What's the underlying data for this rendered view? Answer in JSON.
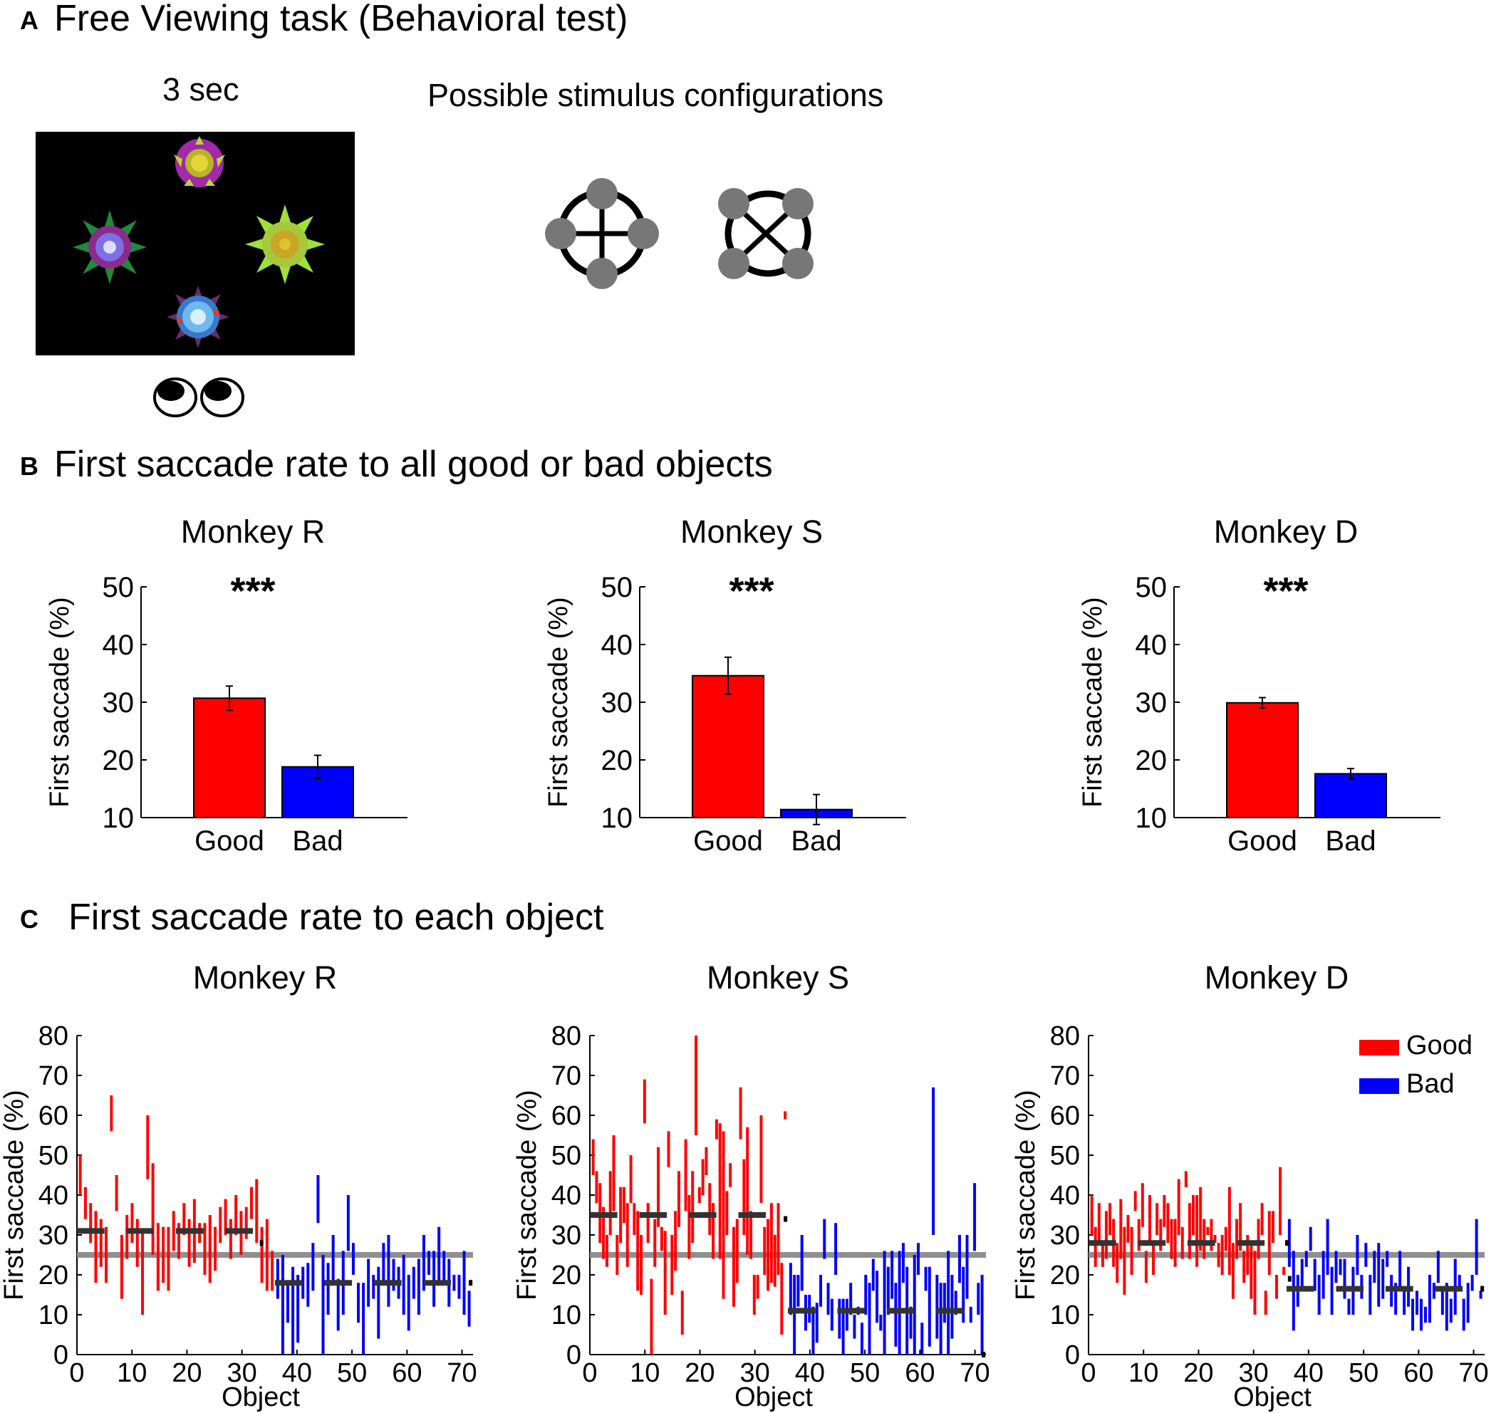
{
  "panelA": {
    "letter": "A",
    "title": "Free Viewing task (Behavioral test)",
    "duration": "3 sec",
    "config_title": "Possible stimulus configurations"
  },
  "panelB": {
    "letter": "B",
    "title": "First saccade rate to all good or bad objects"
  },
  "panelC": {
    "letter": "C",
    "title": "First saccade rate to each object"
  },
  "colors": {
    "good": "#ff0000",
    "bad": "#0000ff",
    "mean": "#333333",
    "chance": "#8f8f8f"
  },
  "chart_data": [
    {
      "type": "bar",
      "title": "Monkey R",
      "ylabel": "First saccade (%)",
      "categories": [
        "Good",
        "Bad"
      ],
      "values": [
        30.7,
        18.8
      ],
      "errors": [
        2.1,
        2.0
      ],
      "ylim": [
        10,
        50
      ],
      "yticks": [
        "10",
        "20",
        "30",
        "40",
        "50"
      ],
      "significance": "***"
    },
    {
      "type": "bar",
      "title": "Monkey S",
      "ylabel": "First saccade (%)",
      "categories": [
        "Good",
        "Bad"
      ],
      "values": [
        34.6,
        11.4
      ],
      "errors": [
        3.2,
        2.6
      ],
      "ylim": [
        10,
        50
      ],
      "yticks": [
        "10",
        "20",
        "30",
        "40",
        "50"
      ],
      "significance": "***"
    },
    {
      "type": "bar",
      "title": "Monkey D",
      "ylabel": "First saccade (%)",
      "categories": [
        "Good",
        "Bad"
      ],
      "values": [
        29.9,
        17.6
      ],
      "errors": [
        0.9,
        0.9
      ],
      "ylim": [
        10,
        50
      ],
      "yticks": [
        "10",
        "20",
        "30",
        "40",
        "50"
      ],
      "significance": "***"
    },
    {
      "type": "errorbar",
      "title": "Monkey R",
      "xlabel": "Object",
      "ylabel": "First saccade (%)",
      "xlim": [
        0,
        72
      ],
      "ylim": [
        0,
        80
      ],
      "xticks": [
        "0",
        "10",
        "20",
        "30",
        "40",
        "50",
        "60",
        "70"
      ],
      "yticks": [
        "0",
        "10",
        "20",
        "30",
        "40",
        "50",
        "60",
        "70",
        "80"
      ],
      "chance": 25,
      "good": [
        [
          40,
          50
        ],
        [
          34,
          42
        ],
        [
          28,
          38
        ],
        [
          18,
          36
        ],
        [
          22,
          34
        ],
        [
          18,
          32
        ],
        [
          56,
          65
        ],
        [
          36,
          45
        ],
        [
          14,
          30
        ],
        [
          24,
          35
        ],
        [
          28,
          38
        ],
        [
          22,
          34
        ],
        [
          10,
          31
        ],
        [
          44,
          60
        ],
        [
          25,
          48
        ],
        [
          16,
          33
        ],
        [
          18,
          32
        ],
        [
          16,
          32
        ],
        [
          26,
          36
        ],
        [
          24,
          33
        ],
        [
          30,
          38
        ],
        [
          22,
          34
        ],
        [
          23,
          39
        ],
        [
          28,
          33
        ],
        [
          20,
          33
        ],
        [
          18,
          35
        ],
        [
          21,
          32
        ],
        [
          28,
          37
        ],
        [
          30,
          39
        ],
        [
          24,
          34
        ],
        [
          30,
          40
        ],
        [
          25,
          36
        ],
        [
          29,
          37
        ],
        [
          34,
          42
        ],
        [
          28,
          44
        ],
        [
          18,
          32
        ],
        [
          16,
          34
        ],
        [
          16,
          26
        ]
      ],
      "bad": [
        [
          14,
          24
        ],
        [
          0,
          25
        ],
        [
          8,
          18
        ],
        [
          0,
          22
        ],
        [
          3,
          20
        ],
        [
          14,
          22
        ],
        [
          12,
          23
        ],
        [
          16,
          28
        ],
        [
          33,
          45
        ],
        [
          0,
          25
        ],
        [
          10,
          23
        ],
        [
          18,
          30
        ],
        [
          6,
          19
        ],
        [
          10,
          26
        ],
        [
          26,
          40
        ],
        [
          20,
          28
        ],
        [
          8,
          18
        ],
        [
          0,
          18
        ],
        [
          12,
          24
        ],
        [
          14,
          20
        ],
        [
          4,
          22
        ],
        [
          18,
          28
        ],
        [
          12,
          30
        ],
        [
          16,
          24
        ],
        [
          14,
          22
        ],
        [
          10,
          25
        ],
        [
          6,
          20
        ],
        [
          14,
          22
        ],
        [
          10,
          24
        ],
        [
          16,
          30
        ],
        [
          20,
          26
        ],
        [
          12,
          26
        ],
        [
          18,
          32
        ],
        [
          18,
          26
        ],
        [
          12,
          24
        ],
        [
          16,
          20
        ],
        [
          14,
          20
        ],
        [
          10,
          26
        ],
        [
          7,
          16
        ]
      ],
      "means": [
        [
          0,
          5,
          31
        ],
        [
          9,
          14,
          31
        ],
        [
          18,
          23,
          31
        ],
        [
          27,
          32,
          31
        ],
        [
          36,
          41,
          18
        ],
        [
          45,
          50,
          18
        ],
        [
          54,
          59,
          18
        ],
        [
          63,
          68,
          18
        ]
      ],
      "ticks": [
        [
          33.5,
          28
        ],
        [
          71.5,
          18
        ]
      ]
    },
    {
      "type": "errorbar",
      "title": "Monkey S",
      "xlabel": "Object",
      "ylabel": "First saccade (%)",
      "xlim": [
        0,
        72
      ],
      "ylim": [
        0,
        80
      ],
      "xticks": [
        "0",
        "10",
        "20",
        "30",
        "40",
        "50",
        "60",
        "70"
      ],
      "yticks": [
        "0",
        "10",
        "20",
        "30",
        "40",
        "50",
        "60",
        "70",
        "80"
      ],
      "chance": 25,
      "good": [
        [
          45,
          54
        ],
        [
          38,
          46
        ],
        [
          28,
          43
        ],
        [
          24,
          37
        ],
        [
          22,
          30
        ],
        [
          30,
          46
        ],
        [
          36,
          55
        ],
        [
          20,
          30
        ],
        [
          28,
          42
        ],
        [
          33,
          42
        ],
        [
          22,
          38
        ],
        [
          38,
          50
        ],
        [
          30,
          38
        ],
        [
          16,
          36
        ],
        [
          15,
          30
        ],
        [
          58,
          69
        ],
        [
          28,
          38
        ],
        [
          0,
          19
        ],
        [
          22,
          34
        ],
        [
          32,
          52
        ],
        [
          26,
          32
        ],
        [
          10,
          31
        ],
        [
          47,
          56
        ],
        [
          15,
          30
        ],
        [
          21,
          36
        ],
        [
          32,
          46
        ],
        [
          5,
          16
        ],
        [
          36,
          54
        ],
        [
          24,
          40
        ],
        [
          28,
          46
        ],
        [
          55,
          80
        ],
        [
          38,
          42
        ],
        [
          40,
          49
        ],
        [
          45,
          52
        ],
        [
          30,
          43
        ],
        [
          24,
          38
        ],
        [
          54,
          59
        ],
        [
          24,
          58
        ],
        [
          14,
          56
        ],
        [
          30,
          41
        ],
        [
          42,
          48
        ],
        [
          12,
          32
        ],
        [
          18,
          34
        ],
        [
          54,
          67
        ],
        [
          30,
          49
        ],
        [
          25,
          57
        ],
        [
          24,
          36
        ],
        [
          10,
          20
        ],
        [
          14,
          20
        ],
        [
          38,
          60
        ],
        [
          20,
          32
        ],
        [
          16,
          34
        ],
        [
          18,
          38
        ],
        [
          17,
          30
        ],
        [
          20,
          38
        ],
        [
          5,
          23
        ],
        [
          59,
          61
        ]
      ],
      "bad": [
        [
          10,
          23
        ],
        [
          0,
          20
        ],
        [
          12,
          20
        ],
        [
          16,
          30
        ],
        [
          6,
          15
        ],
        [
          8,
          15
        ],
        [
          0,
          12
        ],
        [
          3,
          13
        ],
        [
          12,
          20
        ],
        [
          24,
          34
        ],
        [
          10,
          18
        ],
        [
          6,
          14
        ],
        [
          20,
          33
        ],
        [
          4,
          14
        ],
        [
          0,
          14
        ],
        [
          6,
          14
        ],
        [
          10,
          18
        ],
        [
          4,
          10
        ],
        [
          10,
          12
        ],
        [
          0,
          8
        ],
        [
          10,
          20
        ],
        [
          0,
          18
        ],
        [
          16,
          24
        ],
        [
          8,
          21
        ],
        [
          6,
          10
        ],
        [
          0,
          26
        ],
        [
          10,
          22
        ],
        [
          14,
          26
        ],
        [
          2,
          18
        ],
        [
          0,
          26
        ],
        [
          18,
          28
        ],
        [
          0,
          22
        ],
        [
          4,
          12
        ],
        [
          0,
          25
        ],
        [
          20,
          28
        ],
        [
          0,
          8
        ],
        [
          16,
          22
        ],
        [
          2,
          22
        ],
        [
          30,
          67
        ],
        [
          4,
          20
        ],
        [
          0,
          18
        ],
        [
          8,
          18
        ],
        [
          0,
          26
        ],
        [
          4,
          20
        ],
        [
          10,
          16
        ],
        [
          18,
          30
        ],
        [
          8,
          22
        ],
        [
          14,
          30
        ],
        [
          8,
          12
        ],
        [
          26,
          43
        ],
        [
          10,
          18
        ],
        [
          0,
          20
        ]
      ],
      "means": [
        [
          0,
          5,
          35
        ],
        [
          9,
          14,
          35
        ],
        [
          18,
          23,
          35
        ],
        [
          27,
          32,
          35
        ],
        [
          36,
          41,
          11
        ],
        [
          45,
          50,
          11
        ],
        [
          54,
          59,
          11
        ],
        [
          63,
          68,
          11
        ]
      ],
      "ticks": [
        [
          35.5,
          34
        ],
        [
          71.5,
          0
        ]
      ]
    },
    {
      "type": "errorbar",
      "title": "Monkey D",
      "xlabel": "Object",
      "ylabel": "First saccade (%)",
      "xlim": [
        0,
        72
      ],
      "ylim": [
        0,
        80
      ],
      "xticks": [
        "0",
        "10",
        "20",
        "30",
        "40",
        "50",
        "60",
        "70"
      ],
      "yticks": [
        "0",
        "10",
        "20",
        "30",
        "40",
        "50",
        "60",
        "70",
        "80"
      ],
      "chance": 25,
      "good": [
        [
          30,
          40
        ],
        [
          22,
          32
        ],
        [
          28,
          38
        ],
        [
          22,
          28
        ],
        [
          24,
          36
        ],
        [
          30,
          38
        ],
        [
          22,
          34
        ],
        [
          18,
          28
        ],
        [
          24,
          39
        ],
        [
          15,
          32
        ],
        [
          28,
          35
        ],
        [
          20,
          32
        ],
        [
          36,
          41
        ],
        [
          26,
          34
        ],
        [
          32,
          43
        ],
        [
          18,
          26
        ],
        [
          28,
          40
        ],
        [
          20,
          28
        ],
        [
          30,
          38
        ],
        [
          26,
          34
        ],
        [
          32,
          40
        ],
        [
          28,
          38
        ],
        [
          24,
          34
        ],
        [
          22,
          34
        ],
        [
          30,
          44
        ],
        [
          24,
          32
        ],
        [
          42,
          46
        ],
        [
          24,
          38
        ],
        [
          30,
          40
        ],
        [
          22,
          40
        ],
        [
          26,
          42
        ],
        [
          24,
          34
        ],
        [
          30,
          32
        ],
        [
          26,
          34
        ],
        [
          28,
          30
        ],
        [
          22,
          28
        ],
        [
          20,
          30
        ],
        [
          26,
          32
        ],
        [
          20,
          42
        ],
        [
          14,
          28
        ],
        [
          24,
          34
        ],
        [
          26,
          38
        ],
        [
          18,
          26
        ],
        [
          20,
          30
        ],
        [
          14,
          28
        ],
        [
          10,
          26
        ],
        [
          24,
          34
        ],
        [
          30,
          38
        ],
        [
          10,
          16
        ],
        [
          20,
          36
        ],
        [
          28,
          36
        ],
        [
          14,
          20
        ],
        [
          30,
          47
        ],
        [
          20,
          22
        ]
      ],
      "bad": [
        [
          22,
          34
        ],
        [
          6,
          26
        ],
        [
          12,
          20
        ],
        [
          16,
          24
        ],
        [
          22,
          26
        ],
        [
          26,
          32
        ],
        [
          16,
          24
        ],
        [
          10,
          20
        ],
        [
          14,
          26
        ],
        [
          20,
          34
        ],
        [
          10,
          22
        ],
        [
          18,
          26
        ],
        [
          20,
          24
        ],
        [
          14,
          24
        ],
        [
          10,
          14
        ],
        [
          10,
          22
        ],
        [
          20,
          30
        ],
        [
          14,
          20
        ],
        [
          22,
          28
        ],
        [
          10,
          20
        ],
        [
          18,
          26
        ],
        [
          12,
          28
        ],
        [
          14,
          24
        ],
        [
          22,
          26
        ],
        [
          12,
          20
        ],
        [
          10,
          18
        ],
        [
          16,
          26
        ],
        [
          10,
          16
        ],
        [
          12,
          22
        ],
        [
          6,
          14
        ],
        [
          10,
          16
        ],
        [
          6,
          14
        ],
        [
          8,
          12
        ],
        [
          8,
          20
        ],
        [
          14,
          18
        ],
        [
          18,
          26
        ],
        [
          10,
          16
        ],
        [
          6,
          18
        ],
        [
          8,
          14
        ],
        [
          10,
          24
        ],
        [
          16,
          20
        ],
        [
          6,
          14
        ],
        [
          8,
          18
        ],
        [
          16,
          20
        ],
        [
          20,
          34
        ],
        [
          14,
          16
        ]
      ],
      "means": [
        [
          0,
          5,
          28
        ],
        [
          9,
          14,
          28
        ],
        [
          18,
          23,
          28
        ],
        [
          27,
          32,
          28
        ],
        [
          36,
          41,
          16.5
        ],
        [
          45,
          50,
          16.5
        ],
        [
          54,
          59,
          16.5
        ],
        [
          63,
          68,
          16.5
        ]
      ],
      "ticks": [
        [
          36,
          28
        ],
        [
          36.5,
          19
        ],
        [
          71.5,
          16.5
        ]
      ],
      "legend": [
        "Good",
        "Bad"
      ]
    }
  ]
}
